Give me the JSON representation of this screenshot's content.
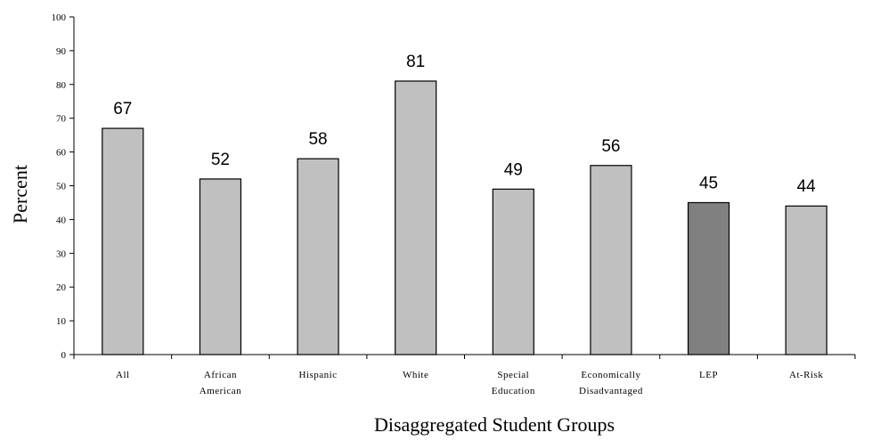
{
  "chart_data": {
    "type": "bar",
    "title": "",
    "xlabel": "Disaggregated Student Groups",
    "ylabel": "Percent",
    "ylim": [
      0,
      100
    ],
    "yticks": [
      "0",
      "10",
      "20",
      "30",
      "40",
      "50",
      "60",
      "70",
      "80",
      "90",
      "100"
    ],
    "categories": [
      [
        "All"
      ],
      [
        "African",
        "American"
      ],
      [
        "Hispanic"
      ],
      [
        "White"
      ],
      [
        "Special",
        "Education"
      ],
      [
        "Economically",
        "Disadvantaged"
      ],
      [
        "LEP"
      ],
      [
        "At-Risk"
      ]
    ],
    "values": [
      67,
      52,
      58,
      81,
      49,
      56,
      45,
      44
    ],
    "data_labels": [
      "67",
      "52",
      "58",
      "81",
      "49",
      "56",
      "45",
      "44"
    ],
    "grid": false,
    "legend": "none",
    "colors": {
      "bar": "#c0c0c0",
      "highlight_bar": "#808080",
      "highlight_index": 6,
      "outline": "#000000",
      "axis": "#000000"
    }
  }
}
